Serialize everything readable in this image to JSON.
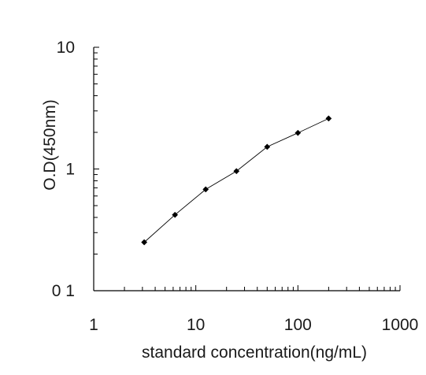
{
  "chart_data": {
    "type": "line",
    "title": "",
    "xlabel": "standard concentration(ng/mL)",
    "ylabel": "O.D(450nm)",
    "xscale": "log",
    "yscale": "log",
    "xlim": [
      1,
      1000
    ],
    "ylim": [
      0.1,
      10
    ],
    "x_tick_labels": [
      "1",
      "10",
      "100",
      "1000"
    ],
    "y_tick_labels": [
      "0 1",
      "1",
      "10"
    ],
    "grid": false,
    "marker": "diamond",
    "line_color": "#000000",
    "series": [
      {
        "x": [
          3.125,
          6.25,
          12.5,
          25,
          50,
          100,
          200
        ],
        "y": [
          0.25,
          0.42,
          0.68,
          0.96,
          1.52,
          1.98,
          2.6
        ]
      }
    ]
  }
}
